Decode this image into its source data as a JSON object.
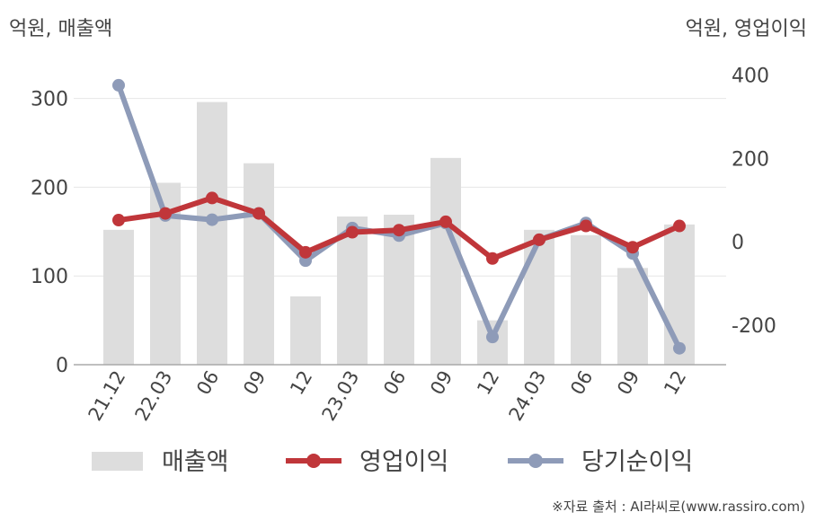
{
  "units": {
    "left": "억원, 매출액",
    "right": "억원, 영업이익"
  },
  "source": "※자료 출처 : AI라씨로(www.rassiro.com)",
  "chart_data": {
    "type": "bar",
    "categories": [
      "21.12",
      "22.03",
      "06",
      "09",
      "12",
      "23.03",
      "06",
      "09",
      "12",
      "24.03",
      "06",
      "09",
      "12"
    ],
    "y_left": {
      "ylim": [
        0,
        330
      ],
      "ticks": [
        0,
        100,
        200,
        300
      ]
    },
    "y_right": {
      "ylim": [
        -290,
        420
      ],
      "ticks": [
        -200,
        0,
        200,
        400
      ]
    },
    "series": [
      {
        "name": "매출액",
        "type": "bar",
        "axis": "left",
        "color": "#dddddd",
        "values": [
          152,
          205,
          296,
          227,
          77,
          167,
          169,
          233,
          50,
          152,
          146,
          109,
          158
        ]
      },
      {
        "name": "영업이익",
        "type": "line",
        "axis": "right",
        "color": "#c0363a",
        "values": [
          52,
          68,
          105,
          68,
          -25,
          23,
          28,
          48,
          -40,
          5,
          38,
          -13,
          38
        ]
      },
      {
        "name": "당기순이익",
        "type": "line",
        "axis": "right",
        "color": "#8e9bb8",
        "values": [
          375,
          63,
          53,
          68,
          -45,
          33,
          15,
          45,
          -228,
          5,
          45,
          -28,
          -255
        ]
      }
    ],
    "grid": true,
    "legend": "bottom"
  }
}
